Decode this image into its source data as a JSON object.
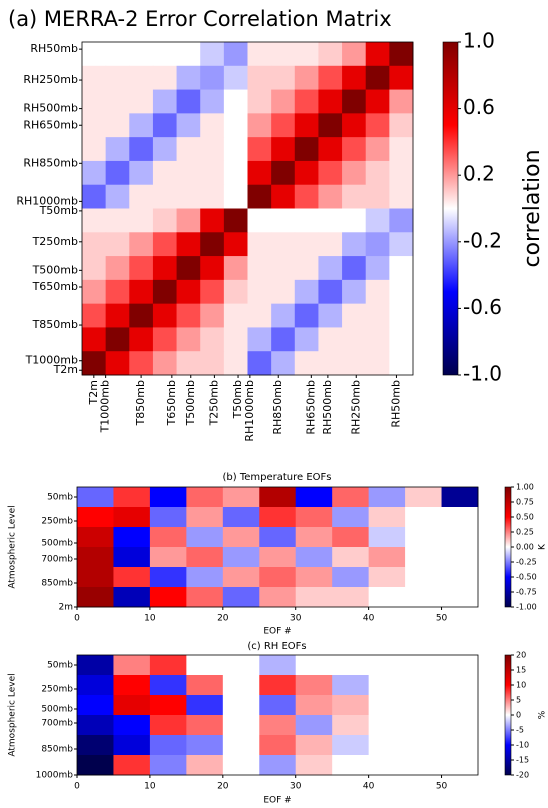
{
  "chart_data": [
    {
      "type": "heatmap",
      "title": "(a) MERRA-2 Error Correlation Matrix",
      "xlim": [
        0,
        14
      ],
      "ylim": [
        0,
        14
      ],
      "xticks": [
        {
          "value": 0.5,
          "label": "T2m"
        },
        {
          "value": 1,
          "label": "T1000mb"
        },
        {
          "value": 2.5,
          "label": "T850mb"
        },
        {
          "value": 3.8,
          "label": "T650mb"
        },
        {
          "value": 4.6,
          "label": "T500mb"
        },
        {
          "value": 5.6,
          "label": "T250mb"
        },
        {
          "value": 6.6,
          "label": "T50mb"
        },
        {
          "value": 7.1,
          "label": "RH1000mb"
        },
        {
          "value": 8.3,
          "label": "RH850mb"
        },
        {
          "value": 9.7,
          "label": "RH650mb"
        },
        {
          "value": 10.4,
          "label": "RH500mb"
        },
        {
          "value": 11.6,
          "label": "RH250mb"
        },
        {
          "value": 13.3,
          "label": "RH50mb"
        }
      ],
      "yticks": [
        {
          "value": 13.7,
          "label": "RH50mb"
        },
        {
          "value": 12.4,
          "label": "RH250mb"
        },
        {
          "value": 11.2,
          "label": "RH500mb"
        },
        {
          "value": 10.5,
          "label": "RH650mb"
        },
        {
          "value": 8.9,
          "label": "RH850mb"
        },
        {
          "value": 7.3,
          "label": "RH1000mb"
        },
        {
          "value": 6.9,
          "label": "T50mb"
        },
        {
          "value": 5.6,
          "label": "T250mb"
        },
        {
          "value": 4.4,
          "label": "T500mb"
        },
        {
          "value": 3.7,
          "label": "T650mb"
        },
        {
          "value": 2.1,
          "label": "T850mb"
        },
        {
          "value": 0.6,
          "label": "T1000mb"
        },
        {
          "value": 0.2,
          "label": "T2m"
        }
      ],
      "colorbar": {
        "label": "correlation",
        "lim": [
          -1,
          1
        ],
        "ticks": [
          {
            "value": 1,
            "label": "1.0"
          },
          0.6,
          0.2,
          -0.2,
          -0.6,
          {
            "value": -1,
            "label": "-1.0"
          }
        ]
      },
      "values": [
        [
          0,
          0,
          0,
          0,
          0,
          -0.1,
          -0.2,
          0.05,
          0.05,
          0.05,
          0.1,
          0.2,
          0.6,
          1
        ],
        [
          0.05,
          0.05,
          0.05,
          0.05,
          -0.15,
          -0.2,
          -0.1,
          0.1,
          0.1,
          0.2,
          0.35,
          0.6,
          1,
          0.6
        ],
        [
          0.05,
          0.05,
          0.05,
          -0.15,
          -0.3,
          -0.15,
          0,
          0.1,
          0.2,
          0.35,
          0.6,
          1,
          0.6,
          0.2
        ],
        [
          0.05,
          0.05,
          -0.15,
          -0.3,
          -0.15,
          0.05,
          0,
          0.2,
          0.35,
          0.6,
          1,
          0.6,
          0.35,
          0.1
        ],
        [
          0.05,
          -0.15,
          -0.3,
          -0.15,
          0.05,
          0.05,
          0,
          0.35,
          0.6,
          1,
          0.6,
          0.35,
          0.2,
          0.05
        ],
        [
          -0.15,
          -0.3,
          -0.15,
          0.05,
          0.05,
          0.05,
          0,
          0.6,
          1,
          0.6,
          0.35,
          0.2,
          0.1,
          0.05
        ],
        [
          -0.3,
          -0.15,
          0.05,
          0.05,
          0.05,
          0.05,
          0,
          1,
          0.6,
          0.35,
          0.2,
          0.1,
          0.1,
          0.05
        ],
        [
          0.05,
          0.05,
          0.05,
          0.1,
          0.2,
          0.6,
          1,
          0,
          0,
          0,
          0,
          0,
          -0.1,
          -0.2
        ],
        [
          0.1,
          0.1,
          0.2,
          0.35,
          0.6,
          1,
          0.6,
          0.05,
          0.05,
          0.05,
          0.05,
          -0.15,
          -0.2,
          -0.1
        ],
        [
          0.1,
          0.2,
          0.35,
          0.6,
          1,
          0.6,
          0.2,
          0.05,
          0.05,
          0.05,
          -0.15,
          -0.3,
          -0.15,
          0
        ],
        [
          0.2,
          0.35,
          0.6,
          1,
          0.6,
          0.35,
          0.1,
          0.05,
          0.05,
          -0.15,
          -0.3,
          -0.15,
          0.05,
          0
        ],
        [
          0.35,
          0.6,
          1,
          0.6,
          0.35,
          0.2,
          0.05,
          0.05,
          -0.15,
          -0.3,
          -0.15,
          0.05,
          0.05,
          0
        ],
        [
          0.6,
          1,
          0.6,
          0.35,
          0.2,
          0.1,
          0.05,
          -0.15,
          -0.3,
          -0.15,
          0.05,
          0.05,
          0.05,
          0
        ],
        [
          1,
          0.6,
          0.35,
          0.2,
          0.1,
          0.1,
          0.05,
          -0.3,
          -0.15,
          0.05,
          0.05,
          0.05,
          0.05,
          0
        ]
      ]
    },
    {
      "type": "heatmap",
      "title": "(b) Temperature EOFs",
      "xlabel": "EOF #",
      "ylabel": "Atmospheric Level",
      "xlim": [
        0,
        55
      ],
      "ylim": [
        0,
        6
      ],
      "xticks": [
        0,
        10,
        20,
        30,
        40,
        50
      ],
      "yticks": [
        {
          "value": 5.5,
          "label": "50mb"
        },
        {
          "value": 4.3,
          "label": "250mb"
        },
        {
          "value": 3.2,
          "label": "500mb"
        },
        {
          "value": 2.4,
          "label": "700mb"
        },
        {
          "value": 1.2,
          "label": "850mb"
        },
        {
          "value": 0,
          "label": "2m"
        }
      ],
      "colorbar": {
        "label": "K",
        "lim": [
          -1,
          1
        ],
        "ticks": [
          {
            "value": 1,
            "label": "1.00"
          },
          0.75,
          {
            "value": 0.5,
            "label": "0.50"
          },
          0.25,
          {
            "value": 0,
            "label": "0.00"
          },
          -0.25,
          {
            "value": -0.5,
            "label": "-0.50"
          },
          -0.75,
          {
            "value": -1,
            "label": "-1.00"
          }
        ]
      },
      "values": [
        [
          -0.3,
          0.4,
          -0.5,
          0.3,
          0.2,
          0.8,
          -0.5,
          0.3,
          -0.2,
          0.1,
          -0.8
        ],
        [
          0.5,
          0.6,
          -0.3,
          0.2,
          -0.3,
          0.4,
          0.3,
          -0.2,
          0.1,
          0,
          0
        ],
        [
          0.7,
          -0.5,
          0.3,
          -0.2,
          0.2,
          -0.3,
          0.2,
          0.3,
          -0.1,
          0,
          0
        ],
        [
          0.8,
          -0.6,
          0.2,
          0.3,
          -0.2,
          0.2,
          -0.2,
          0.1,
          0.2,
          0,
          0
        ],
        [
          0.8,
          0.4,
          -0.4,
          -0.2,
          0.2,
          0.3,
          0.2,
          -0.2,
          0.1,
          0,
          0
        ],
        [
          0.9,
          -0.7,
          0.5,
          0.3,
          -0.3,
          0.2,
          0.1,
          0.1,
          0,
          0,
          0
        ]
      ]
    },
    {
      "type": "heatmap",
      "title": "(c) RH EOFs",
      "xlabel": "EOF #",
      "ylabel": "Atmospheric Level",
      "xlim": [
        0,
        55
      ],
      "ylim": [
        0,
        6
      ],
      "xticks": [
        0,
        10,
        20,
        30,
        40,
        50
      ],
      "yticks": [
        {
          "value": 5.5,
          "label": "50mb"
        },
        {
          "value": 4.3,
          "label": "250mb"
        },
        {
          "value": 3.3,
          "label": "500mb"
        },
        {
          "value": 2.6,
          "label": "700mb"
        },
        {
          "value": 1.3,
          "label": "850mb"
        },
        {
          "value": 0,
          "label": "1000mb"
        }
      ],
      "colorbar": {
        "label": "%",
        "lim": [
          -20,
          20
        ],
        "ticks": [
          20,
          15,
          10,
          5,
          0,
          -5,
          -10,
          -15,
          -20
        ]
      },
      "values": [
        [
          -15,
          5,
          8,
          0,
          0,
          -3,
          0,
          0,
          0,
          0,
          0
        ],
        [
          -12,
          10,
          -8,
          6,
          0,
          8,
          5,
          -3,
          0,
          0,
          0
        ],
        [
          -10,
          12,
          10,
          -8,
          0,
          -6,
          4,
          3,
          0,
          0,
          0
        ],
        [
          -14,
          -10,
          8,
          6,
          0,
          5,
          -4,
          2,
          0,
          0,
          0
        ],
        [
          -18,
          -12,
          -6,
          -5,
          0,
          6,
          3,
          -2,
          0,
          0,
          0
        ],
        [
          -20,
          8,
          -5,
          3,
          0,
          -4,
          2,
          0,
          0,
          0,
          0
        ]
      ]
    }
  ]
}
